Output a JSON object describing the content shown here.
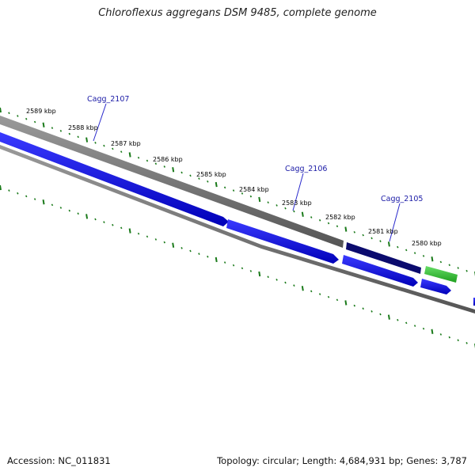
{
  "title": "Chloroflexus aggregans DSM 9485, complete genome",
  "footer": {
    "accession": "Accession: NC_011831",
    "summary": "Topology: circular; Length: 4,684,931 bp; Genes: 3,787"
  },
  "scale_labels": [
    "2589 kbp",
    "2588 kbp",
    "2587 kbp",
    "2586 kbp",
    "2585 kbp",
    "2584 kbp",
    "2583 kbp",
    "2582 kbp",
    "2581 kbp",
    "2580 kbp"
  ],
  "gene_labels": [
    "Cagg_2107",
    "Cagg_2106",
    "Cagg_2105"
  ],
  "colors": {
    "ruler_tick": "#1a7a1a",
    "backbone": "#777777",
    "forward_gene": "#0a0ad8",
    "highlight_gene": "#0b0b6e",
    "green_gene": "#33bb33",
    "label_line": "#2a2acc"
  }
}
